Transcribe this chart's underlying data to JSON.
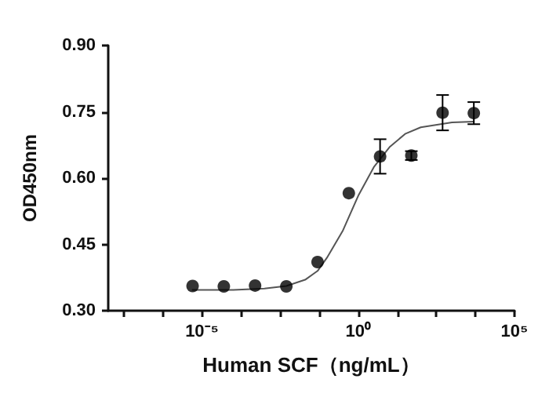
{
  "chart_data": {
    "type": "scatter",
    "xlabel": "Human SCF（ng/mL）",
    "ylabel": "OD450nm",
    "log": "x",
    "xlim": [
      1e-08,
      100000
    ],
    "xticks": [
      {
        "value": 3.16e-08,
        "label": null
      },
      {
        "value": 5.62e-07,
        "label": null
      },
      {
        "value": 1e-05,
        "label": "10⁻⁵"
      },
      {
        "value": 0.000178,
        "label": null
      },
      {
        "value": 0.00316,
        "label": null
      },
      {
        "value": 0.0562,
        "label": null
      },
      {
        "value": 1,
        "label": "10⁰"
      },
      {
        "value": 17.8,
        "label": null
      },
      {
        "value": 316,
        "label": null
      },
      {
        "value": 5620,
        "label": null
      },
      {
        "value": 100000,
        "label": "10⁵"
      }
    ],
    "ylim": [
      0.3,
      0.9
    ],
    "yticks": [
      {
        "value": 0.3,
        "label": "0.30"
      },
      {
        "value": 0.45,
        "label": "0.45"
      },
      {
        "value": 0.6,
        "label": "0.60"
      },
      {
        "value": 0.75,
        "label": "0.75"
      },
      {
        "value": 0.9,
        "label": "0.90"
      }
    ],
    "grid": false,
    "series": [
      {
        "color": "#000000",
        "marker": "circle",
        "x": [
          5e-06,
          5e-05,
          0.0005,
          0.005,
          0.05,
          0.5,
          5,
          50,
          500,
          5000
        ],
        "values": [
          0.356,
          0.355,
          0.357,
          0.355,
          0.41,
          0.566,
          0.649,
          0.651,
          0.748,
          0.747
        ],
        "errors": [
          null,
          null,
          null,
          null,
          null,
          null,
          0.039,
          0.01,
          0.04,
          0.025
        ]
      },
      {
        "type": "line",
        "color": "#555555",
        "marker": "none",
        "line_style": "solid",
        "x": [
          5e-06,
          0.0001,
          0.001,
          0.005,
          0.02,
          0.05,
          0.1,
          0.316,
          1,
          3.16,
          10,
          31.6,
          100,
          1000,
          5000
        ],
        "values": [
          0.347,
          0.347,
          0.35,
          0.356,
          0.37,
          0.39,
          0.42,
          0.48,
          0.56,
          0.625,
          0.67,
          0.7,
          0.715,
          0.726,
          0.728
        ]
      }
    ]
  }
}
